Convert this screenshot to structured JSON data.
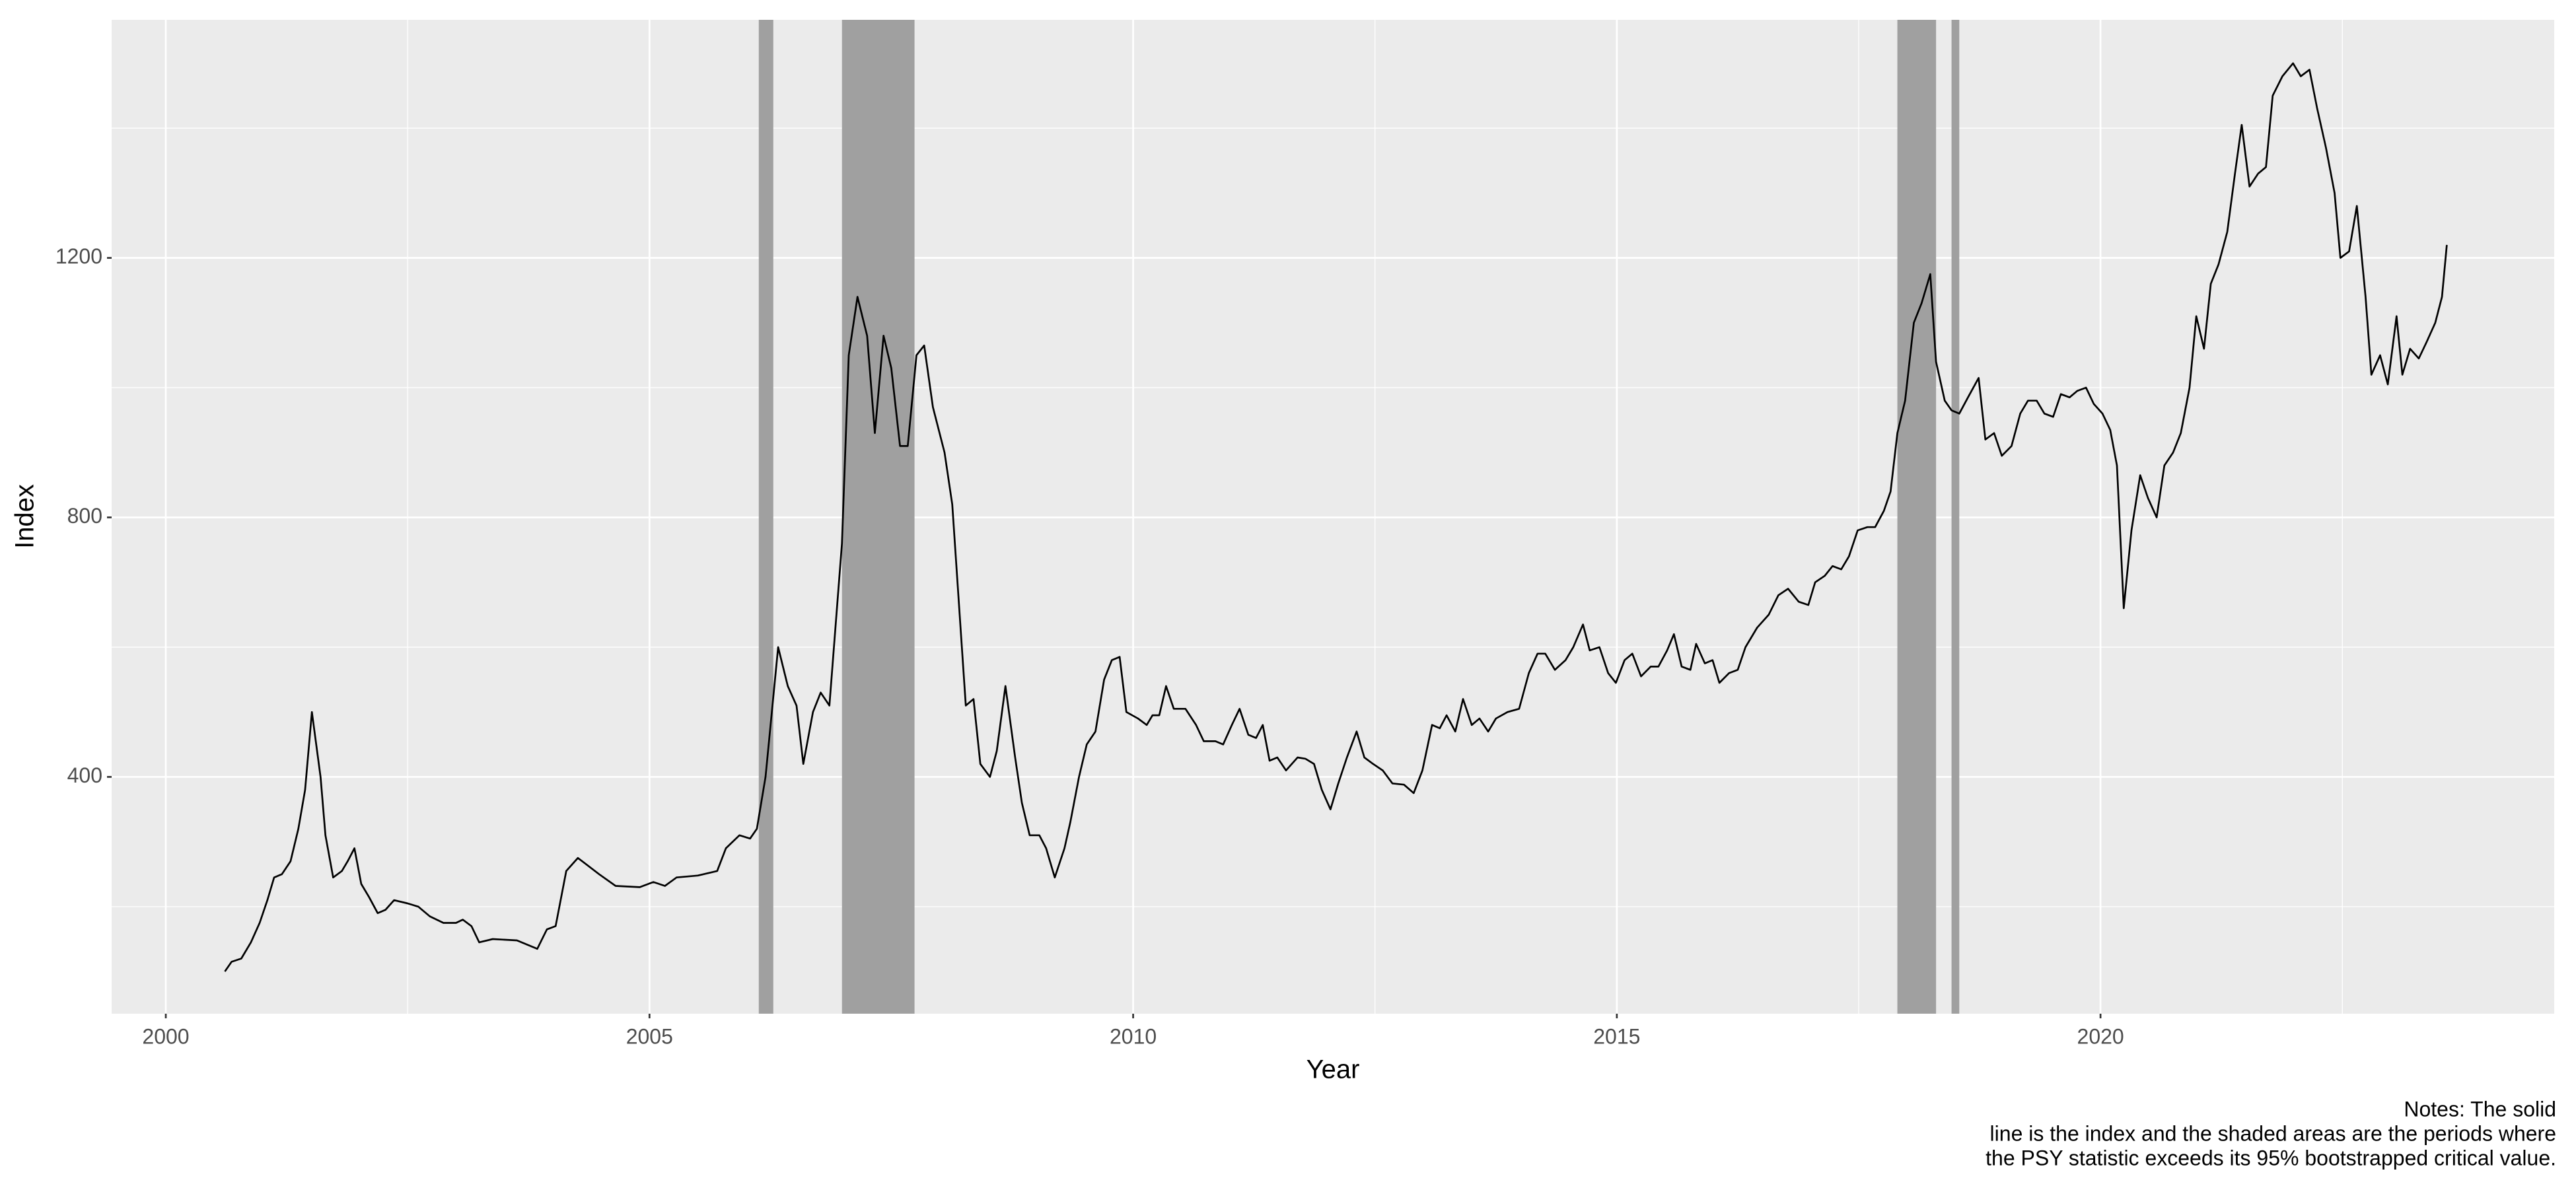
{
  "chart_data": {
    "type": "line",
    "x_label": "Year",
    "y_label": "Index",
    "caption_lines": [
      "Notes: The solid",
      "line is the index and the shaded areas are the periods where",
      "the PSY statistic exceeds its 95% bootstrapped critical value."
    ],
    "xlim": [
      1999.44,
      2024.69
    ],
    "ylim": [
      35,
      1567
    ],
    "xticks": [
      2000,
      2005,
      2010,
      2015,
      2020
    ],
    "x_minor_ticks": [
      2002.5,
      2007.5,
      2012.5,
      2017.5,
      2022.5
    ],
    "yticks": [
      400,
      800,
      1200
    ],
    "y_minor_ticks": [
      200,
      600,
      1000,
      1400
    ],
    "grid": true,
    "color": "#000000",
    "shade_color": "#a0a0a0",
    "shaded_periods": [
      {
        "start": 2006.13,
        "end": 2006.28
      },
      {
        "start": 2006.99,
        "end": 2007.74
      },
      {
        "start": 2017.9,
        "end": 2018.3
      },
      {
        "start": 2018.46,
        "end": 2018.54
      }
    ],
    "x": [
      2000.61,
      2000.68,
      2000.78,
      2000.88,
      2000.97,
      2001.05,
      2001.12,
      2001.2,
      2001.29,
      2001.37,
      2001.44,
      2001.51,
      2001.6,
      2001.65,
      2001.73,
      2001.82,
      2001.88,
      2001.95,
      2002.02,
      2002.1,
      2002.19,
      2002.27,
      2002.36,
      2002.5,
      2002.61,
      2002.73,
      2002.87,
      2003.0,
      2003.07,
      2003.16,
      2003.24,
      2003.38,
      2003.63,
      2003.84,
      2003.94,
      2004.03,
      2004.14,
      2004.26,
      2004.48,
      2004.65,
      2004.9,
      2005.04,
      2005.16,
      2005.28,
      2005.5,
      2005.7,
      2005.79,
      2005.93,
      2006.04,
      2006.11,
      2006.2,
      2006.33,
      2006.43,
      2006.52,
      2006.59,
      2006.69,
      2006.77,
      2006.86,
      2006.99,
      2007.06,
      2007.15,
      2007.25,
      2007.33,
      2007.42,
      2007.5,
      2007.59,
      2007.67,
      2007.76,
      2007.84,
      2007.93,
      2008.05,
      2008.13,
      2008.22,
      2008.27,
      2008.35,
      2008.42,
      2008.52,
      2008.59,
      2008.68,
      2008.78,
      2008.85,
      2008.93,
      2009.03,
      2009.1,
      2009.19,
      2009.29,
      2009.35,
      2009.44,
      2009.52,
      2009.61,
      2009.7,
      2009.78,
      2009.86,
      2009.93,
      2010.05,
      2010.14,
      2010.2,
      2010.27,
      2010.34,
      2010.42,
      2010.54,
      2010.65,
      2010.73,
      2010.85,
      2010.93,
      2011.02,
      2011.1,
      2011.19,
      2011.27,
      2011.34,
      2011.41,
      2011.49,
      2011.58,
      2011.7,
      2011.78,
      2011.87,
      2011.95,
      2012.04,
      2012.12,
      2012.21,
      2012.31,
      2012.39,
      2012.48,
      2012.58,
      2012.68,
      2012.8,
      2012.9,
      2012.99,
      2013.09,
      2013.17,
      2013.24,
      2013.33,
      2013.41,
      2013.5,
      2013.58,
      2013.67,
      2013.75,
      2013.87,
      2013.99,
      2014.09,
      2014.18,
      2014.26,
      2014.36,
      2014.47,
      2014.55,
      2014.65,
      2014.72,
      2014.82,
      2014.91,
      2014.99,
      2015.08,
      2015.16,
      2015.25,
      2015.35,
      2015.43,
      2015.52,
      2015.59,
      2015.67,
      2015.76,
      2015.82,
      2015.91,
      2015.99,
      2016.06,
      2016.16,
      2016.25,
      2016.33,
      2016.45,
      2016.57,
      2016.67,
      2016.77,
      2016.88,
      2016.98,
      2017.05,
      2017.15,
      2017.23,
      2017.32,
      2017.4,
      2017.49,
      2017.59,
      2017.67,
      2017.76,
      2017.83,
      2017.9,
      2017.98,
      2018.07,
      2018.15,
      2018.24,
      2018.3,
      2018.39,
      2018.46,
      2018.54,
      2018.63,
      2018.74,
      2018.81,
      2018.9,
      2018.98,
      2019.08,
      2019.17,
      2019.25,
      2019.34,
      2019.42,
      2019.51,
      2019.59,
      2019.68,
      2019.76,
      2019.85,
      2019.93,
      2020.02,
      2020.1,
      2020.17,
      2020.24,
      2020.32,
      2020.41,
      2020.49,
      2020.58,
      2020.66,
      2020.75,
      2020.83,
      2020.92,
      2020.99,
      2021.07,
      2021.14,
      2021.22,
      2021.31,
      2021.39,
      2021.46,
      2021.54,
      2021.63,
      2021.71,
      2021.78,
      2021.88,
      2021.99,
      2022.07,
      2022.16,
      2022.24,
      2022.33,
      2022.42,
      2022.48,
      2022.57,
      2022.65,
      2022.74,
      2022.8,
      2022.89,
      2022.97,
      2023.06,
      2023.12,
      2023.2,
      2023.29,
      2023.37,
      2023.46,
      2023.53,
      2023.58
    ],
    "values": [
      100,
      115,
      120,
      145,
      175,
      210,
      245,
      250,
      270,
      320,
      380,
      500,
      400,
      310,
      245,
      255,
      270,
      290,
      235,
      215,
      190,
      195,
      210,
      205,
      200,
      185,
      175,
      175,
      180,
      170,
      145,
      150,
      148,
      135,
      165,
      170,
      255,
      275,
      250,
      232,
      230,
      238,
      232,
      245,
      248,
      255,
      290,
      310,
      305,
      320,
      400,
      600,
      540,
      510,
      420,
      500,
      530,
      510,
      760,
      1050,
      1140,
      1080,
      930,
      1080,
      1030,
      910,
      910,
      1050,
      1065,
      970,
      900,
      820,
      620,
      510,
      520,
      420,
      400,
      440,
      540,
      430,
      360,
      310,
      310,
      290,
      245,
      290,
      330,
      400,
      450,
      470,
      550,
      580,
      585,
      500,
      490,
      480,
      495,
      495,
      540,
      505,
      505,
      480,
      455,
      455,
      450,
      480,
      505,
      465,
      460,
      480,
      425,
      430,
      410,
      430,
      428,
      420,
      380,
      350,
      390,
      430,
      470,
      430,
      420,
      410,
      390,
      388,
      375,
      410,
      480,
      475,
      495,
      470,
      520,
      480,
      490,
      470,
      490,
      500,
      505,
      560,
      590,
      590,
      565,
      580,
      600,
      635,
      595,
      600,
      560,
      545,
      580,
      590,
      555,
      570,
      570,
      595,
      620,
      570,
      565,
      605,
      575,
      580,
      545,
      560,
      565,
      600,
      630,
      650,
      680,
      690,
      670,
      665,
      700,
      710,
      725,
      720,
      740,
      780,
      785,
      785,
      810,
      840,
      930,
      980,
      1100,
      1130,
      1175,
      1040,
      980,
      965,
      960,
      985,
      1015,
      920,
      930,
      895,
      910,
      960,
      980,
      980,
      960,
      955,
      990,
      985,
      995,
      1000,
      975,
      960,
      935,
      880,
      660,
      780,
      865,
      830,
      800,
      880,
      900,
      930,
      1000,
      1110,
      1060,
      1160,
      1190,
      1240,
      1330,
      1405,
      1310,
      1330,
      1340,
      1450,
      1480,
      1500,
      1480,
      1490,
      1430,
      1370,
      1300,
      1200,
      1210,
      1280,
      1140,
      1020,
      1050,
      1005,
      1110,
      1020,
      1060,
      1045,
      1070,
      1100,
      1140,
      1220
    ]
  }
}
